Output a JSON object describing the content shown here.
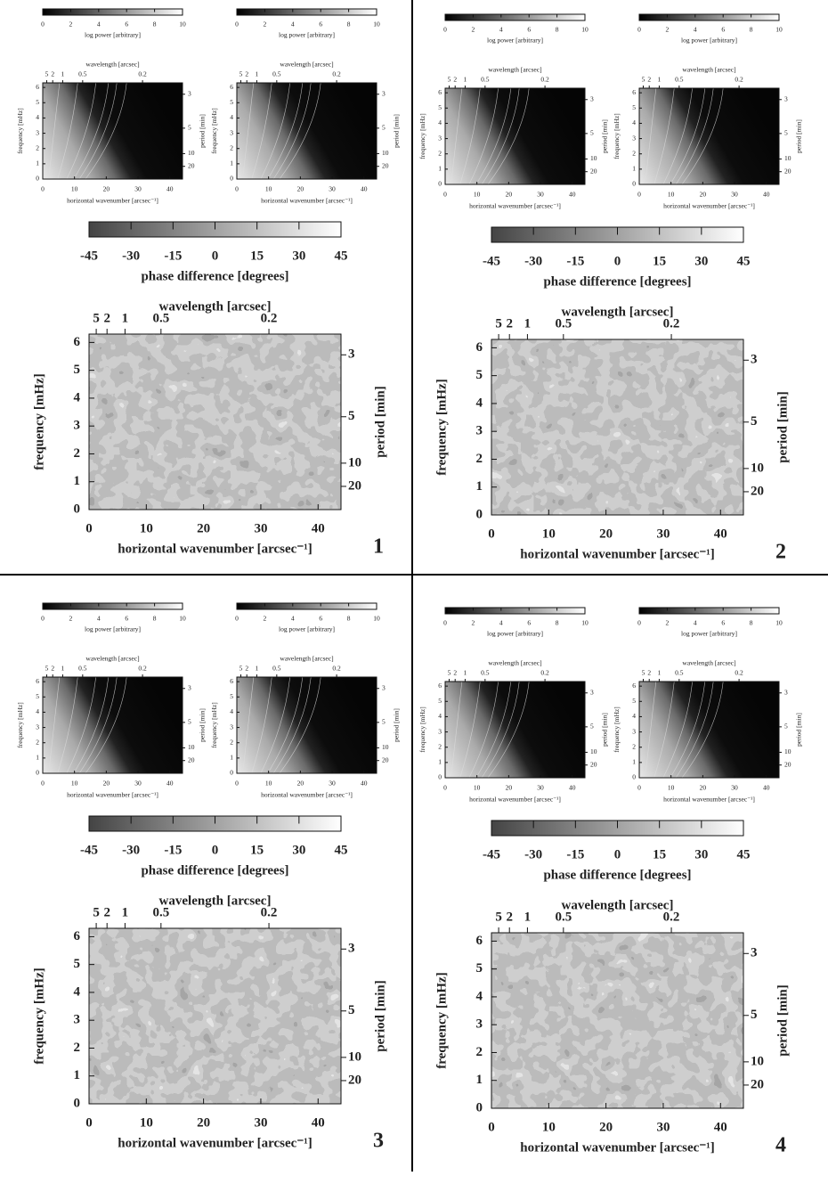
{
  "panel_labels": [
    "1",
    "2",
    "3",
    "4"
  ],
  "chart_data": [
    {
      "type": "heatmap",
      "colorbar": {
        "label": "log power [arbitrary]",
        "lim": [
          0,
          10
        ],
        "ticks": [
          0,
          2,
          4,
          6,
          8,
          10
        ]
      },
      "x_label": "horizontal wavenumber [arcsec⁻¹]",
      "xlim": [
        0,
        44
      ],
      "xticks": [
        0,
        10,
        20,
        30,
        40
      ],
      "y_label": "frequency [mHz]",
      "ylim": [
        0,
        6.3
      ],
      "yticks": [
        0,
        1,
        2,
        3,
        4,
        5,
        6
      ],
      "x2_label": "wavelength [arcsec]",
      "x2ticks": [
        5,
        2,
        1,
        0.5,
        0.2
      ],
      "y2_label": "period [min]",
      "y2ticks": [
        3,
        5,
        10,
        20
      ]
    },
    {
      "type": "heatmap",
      "colorbar": {
        "label": "log power [arbitrary]",
        "lim": [
          0,
          10
        ],
        "ticks": [
          0,
          2,
          4,
          6,
          8,
          10
        ]
      },
      "x_label": "horizontal wavenumber [arcsec⁻¹]",
      "xlim": [
        0,
        44
      ],
      "xticks": [
        0,
        10,
        20,
        30,
        40
      ],
      "y_label": "frequency [mHz]",
      "ylim": [
        0,
        6.3
      ],
      "yticks": [
        0,
        1,
        2,
        3,
        4,
        5,
        6
      ],
      "x2_label": "wavelength [arcsec]",
      "x2ticks": [
        5,
        2,
        1,
        0.5,
        0.2
      ],
      "y2_label": "period [min]",
      "y2ticks": [
        3,
        5,
        10,
        20
      ]
    },
    {
      "type": "phase",
      "colorbar": {
        "label": "phase difference [degrees]",
        "lim": [
          -45,
          45
        ],
        "ticks": [
          -45,
          -30,
          -15,
          0,
          15,
          30,
          45
        ]
      },
      "x_label": "horizontal wavenumber [arcsec⁻¹]",
      "xlim": [
        0,
        44
      ],
      "xticks": [
        0,
        10,
        20,
        30,
        40
      ],
      "y_label": "frequency [mHz]",
      "ylim": [
        0,
        6.3
      ],
      "yticks": [
        0,
        1,
        2,
        3,
        4,
        5,
        6
      ],
      "x2_label": "wavelength [arcsec]",
      "x2ticks": [
        5,
        2,
        1,
        0.5,
        0.2
      ],
      "y2_label": "period [min]",
      "y2ticks": [
        3,
        5,
        10,
        20
      ]
    },
    {
      "type": "heatmap",
      "colorbar": {
        "label": "log power [arbitrary]",
        "lim": [
          0,
          10
        ],
        "ticks": [
          0,
          2,
          4,
          6,
          8,
          10
        ]
      },
      "x_label": "horizontal wavenumber [arcsec⁻¹]",
      "xlim": [
        0,
        44
      ],
      "xticks": [
        0,
        10,
        20,
        30,
        40
      ],
      "y_label": "frequency [mHz]",
      "ylim": [
        0,
        6.3
      ],
      "yticks": [
        0,
        1,
        2,
        3,
        4,
        5,
        6
      ],
      "x2_label": "wavelength [arcsec]",
      "x2ticks": [
        5,
        2,
        1,
        0.5,
        0.2
      ],
      "y2_label": "period [min]",
      "y2ticks": [
        3,
        5,
        10,
        20
      ]
    },
    {
      "type": "heatmap",
      "colorbar": {
        "label": "log power [arbitrary]",
        "lim": [
          0,
          10
        ],
        "ticks": [
          0,
          2,
          4,
          6,
          8,
          10
        ]
      },
      "x_label": "horizontal wavenumber [arcsec⁻¹]",
      "xlim": [
        0,
        44
      ],
      "xticks": [
        0,
        10,
        20,
        30,
        40
      ],
      "y_label": "frequency [mHz]",
      "ylim": [
        0,
        6.3
      ],
      "yticks": [
        0,
        1,
        2,
        3,
        4,
        5,
        6
      ],
      "x2_label": "wavelength [arcsec]",
      "x2ticks": [
        5,
        2,
        1,
        0.5,
        0.2
      ],
      "y2_label": "period [min]",
      "y2ticks": [
        3,
        5,
        10,
        20
      ]
    },
    {
      "type": "phase",
      "colorbar": {
        "label": "phase difference [degrees]",
        "lim": [
          -45,
          45
        ],
        "ticks": [
          -45,
          -30,
          -15,
          0,
          15,
          30,
          45
        ]
      },
      "x_label": "horizontal wavenumber [arcsec⁻¹]",
      "xlim": [
        0,
        44
      ],
      "xticks": [
        0,
        10,
        20,
        30,
        40
      ],
      "y_label": "frequency [mHz]",
      "ylim": [
        0,
        6.3
      ],
      "yticks": [
        0,
        1,
        2,
        3,
        4,
        5,
        6
      ],
      "x2_label": "wavelength [arcsec]",
      "x2ticks": [
        5,
        2,
        1,
        0.5,
        0.2
      ],
      "y2_label": "period [min]",
      "y2ticks": [
        3,
        5,
        10,
        20
      ]
    },
    {
      "type": "heatmap",
      "colorbar": {
        "label": "log power [arbitrary]",
        "lim": [
          0,
          10
        ],
        "ticks": [
          0,
          2,
          4,
          6,
          8,
          10
        ]
      },
      "x_label": "horizontal wavenumber [arcsec⁻¹]",
      "xlim": [
        0,
        44
      ],
      "xticks": [
        0,
        10,
        20,
        30,
        40
      ],
      "y_label": "frequency [mHz]",
      "ylim": [
        0,
        6.3
      ],
      "yticks": [
        0,
        1,
        2,
        3,
        4,
        5,
        6
      ],
      "x2_label": "wavelength [arcsec]",
      "x2ticks": [
        5,
        2,
        1,
        0.5,
        0.2
      ],
      "y2_label": "period [min]",
      "y2ticks": [
        3,
        5,
        10,
        20
      ]
    },
    {
      "type": "heatmap",
      "colorbar": {
        "label": "log power [arbitrary]",
        "lim": [
          0,
          10
        ],
        "ticks": [
          0,
          2,
          4,
          6,
          8,
          10
        ]
      },
      "x_label": "horizontal wavenumber [arcsec⁻¹]",
      "xlim": [
        0,
        44
      ],
      "xticks": [
        0,
        10,
        20,
        30,
        40
      ],
      "y_label": "frequency [mHz]",
      "ylim": [
        0,
        6.3
      ],
      "yticks": [
        0,
        1,
        2,
        3,
        4,
        5,
        6
      ],
      "x2_label": "wavelength [arcsec]",
      "x2ticks": [
        5,
        2,
        1,
        0.5,
        0.2
      ],
      "y2_label": "period [min]",
      "y2ticks": [
        3,
        5,
        10,
        20
      ]
    },
    {
      "type": "phase",
      "colorbar": {
        "label": "phase difference [degrees]",
        "lim": [
          -45,
          45
        ],
        "ticks": [
          -45,
          -30,
          -15,
          0,
          15,
          30,
          45
        ]
      },
      "x_label": "horizontal wavenumber [arcsec⁻¹]",
      "xlim": [
        0,
        44
      ],
      "xticks": [
        0,
        10,
        20,
        30,
        40
      ],
      "y_label": "frequency [mHz]",
      "ylim": [
        0,
        6.3
      ],
      "yticks": [
        0,
        1,
        2,
        3,
        4,
        5,
        6
      ],
      "x2_label": "wavelength [arcsec]",
      "x2ticks": [
        5,
        2,
        1,
        0.5,
        0.2
      ],
      "y2_label": "period [min]",
      "y2ticks": [
        3,
        5,
        10,
        20
      ]
    },
    {
      "type": "heatmap",
      "colorbar": {
        "label": "log power [arbitrary]",
        "lim": [
          0,
          10
        ],
        "ticks": [
          0,
          2,
          4,
          6,
          8,
          10
        ]
      },
      "x_label": "horizontal wavenumber [arcsec⁻¹]",
      "xlim": [
        0,
        44
      ],
      "xticks": [
        0,
        10,
        20,
        30,
        40
      ],
      "y_label": "frequency [mHz]",
      "ylim": [
        0,
        6.3
      ],
      "yticks": [
        0,
        1,
        2,
        3,
        4,
        5,
        6
      ],
      "x2_label": "wavelength [arcsec]",
      "x2ticks": [
        5,
        2,
        1,
        0.5,
        0.2
      ],
      "y2_label": "period [min]",
      "y2ticks": [
        3,
        5,
        10,
        20
      ]
    },
    {
      "type": "heatmap",
      "colorbar": {
        "label": "log power [arbitrary]",
        "lim": [
          0,
          10
        ],
        "ticks": [
          0,
          2,
          4,
          6,
          8,
          10
        ]
      },
      "x_label": "horizontal wavenumber [arcsec⁻¹]",
      "xlim": [
        0,
        44
      ],
      "xticks": [
        0,
        10,
        20,
        30,
        40
      ],
      "y_label": "frequency [mHz]",
      "ylim": [
        0,
        6.3
      ],
      "yticks": [
        0,
        1,
        2,
        3,
        4,
        5,
        6
      ],
      "x2_label": "wavelength [arcsec]",
      "x2ticks": [
        5,
        2,
        1,
        0.5,
        0.2
      ],
      "y2_label": "period [min]",
      "y2ticks": [
        3,
        5,
        10,
        20
      ]
    },
    {
      "type": "phase",
      "colorbar": {
        "label": "phase difference [degrees]",
        "lim": [
          -45,
          45
        ],
        "ticks": [
          -45,
          -30,
          -15,
          0,
          15,
          30,
          45
        ]
      },
      "x_label": "horizontal wavenumber [arcsec⁻¹]",
      "xlim": [
        0,
        44
      ],
      "xticks": [
        0,
        10,
        20,
        30,
        40
      ],
      "y_label": "frequency [mHz]",
      "ylim": [
        0,
        6.3
      ],
      "yticks": [
        0,
        1,
        2,
        3,
        4,
        5,
        6
      ],
      "x2_label": "wavelength [arcsec]",
      "x2ticks": [
        5,
        2,
        1,
        0.5,
        0.2
      ],
      "y2_label": "period [min]",
      "y2ticks": [
        3,
        5,
        10,
        20
      ]
    }
  ]
}
